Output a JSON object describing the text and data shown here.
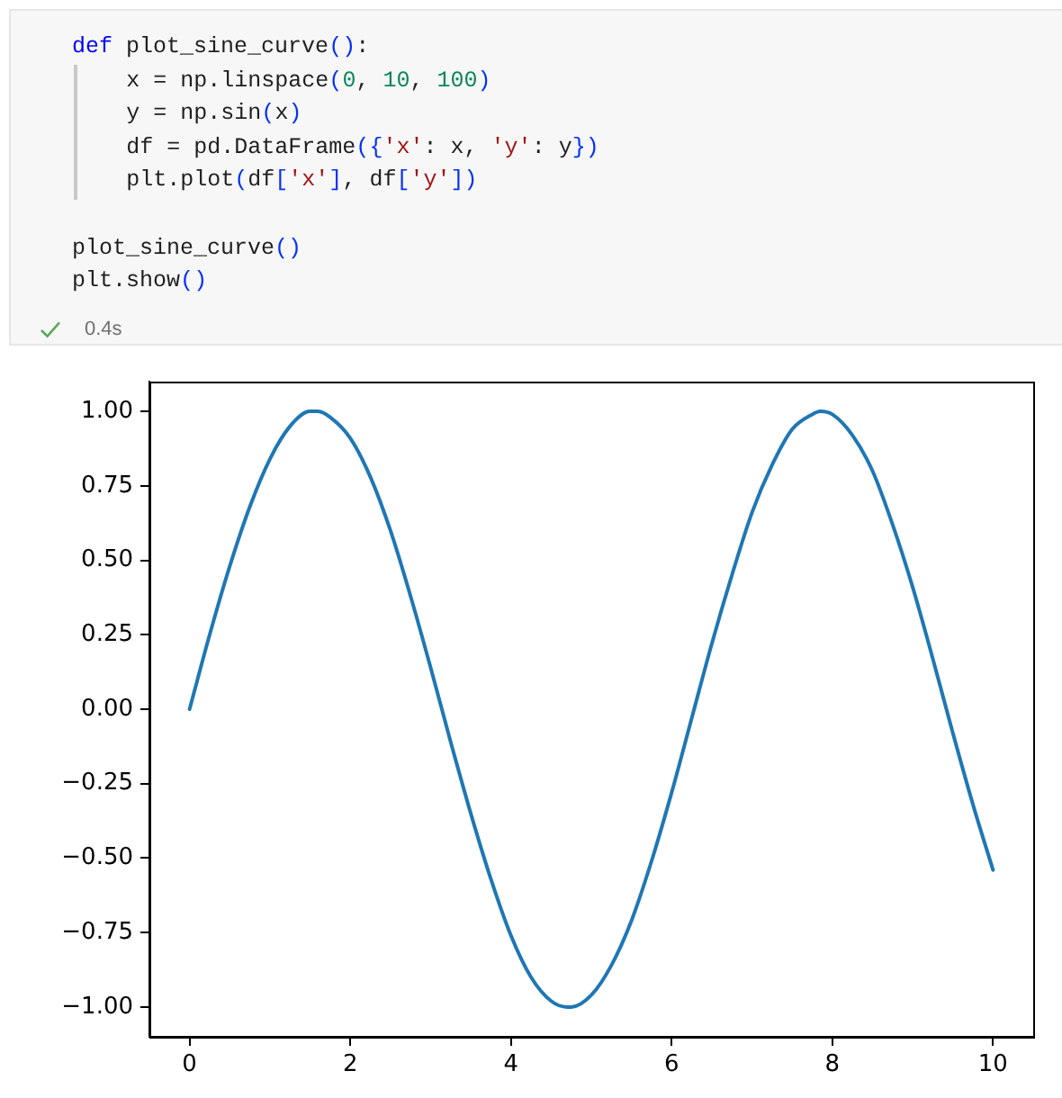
{
  "chart_data": {
    "type": "line",
    "annotations": [
      "def plot_sine_curve():\n    x = np.linspace(0, 10, 100)\n    y = np.sin(x)\n    df = pd.DataFrame({'x': x, 'y': y})\n    plt.plot(df['x'], df['y'])\n\nplot_sine_curve()\nplt.show()",
      "0.4s"
    ],
    "x": [
      0,
      0.25,
      0.5,
      0.75,
      1,
      1.25,
      1.5,
      1.6,
      1.75,
      2,
      2.25,
      2.5,
      2.75,
      3,
      3.25,
      3.5,
      3.75,
      4,
      4.25,
      4.5,
      4.7,
      4.75,
      5,
      5.25,
      5.5,
      5.75,
      6,
      6.25,
      6.5,
      6.75,
      7,
      7.25,
      7.5,
      7.75,
      7.85,
      8,
      8.25,
      8.5,
      8.75,
      9,
      9.25,
      9.5,
      9.75,
      10
    ],
    "series": [
      {
        "color": "#1f77b4",
        "values": [
          0,
          0.25,
          0.48,
          0.68,
          0.84,
          0.95,
          1.0,
          1.0,
          0.98,
          0.91,
          0.78,
          0.6,
          0.38,
          0.14,
          -0.11,
          -0.35,
          -0.57,
          -0.76,
          -0.9,
          -0.98,
          -1.0,
          -1.0,
          -0.96,
          -0.86,
          -0.71,
          -0.51,
          -0.28,
          -0.03,
          0.22,
          0.45,
          0.66,
          0.82,
          0.94,
          0.99,
          1.0,
          0.99,
          0.92,
          0.8,
          0.62,
          0.41,
          0.17,
          -0.08,
          -0.32,
          -0.54
        ]
      }
    ],
    "xlim": [
      -0.5,
      10.5
    ],
    "xticks": [
      0,
      2,
      4,
      6,
      8,
      10
    ],
    "ylim": [
      -1.1,
      1.1
    ],
    "yticks": [
      {
        "value": -1,
        "label": "−1.00"
      },
      {
        "value": -0.75,
        "label": "−0.75"
      },
      {
        "value": -0.5,
        "label": "−0.50"
      },
      {
        "value": -0.25,
        "label": "−0.25"
      },
      {
        "value": 0,
        "label": "0.00"
      },
      {
        "value": 0.25,
        "label": "0.25"
      },
      {
        "value": 0.5,
        "label": "0.50"
      },
      {
        "value": 0.75,
        "label": "0.75"
      },
      {
        "value": 1,
        "label": "1.00"
      }
    ],
    "grid": false,
    "legend": false
  }
}
